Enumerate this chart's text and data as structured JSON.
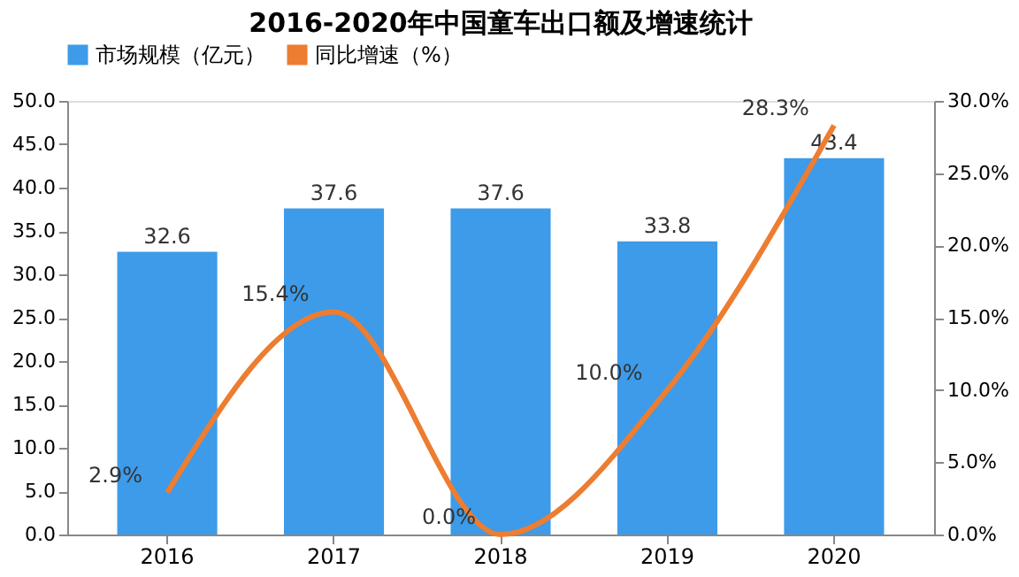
{
  "chart_data": {
    "type": "bar",
    "title": "2016-2020年中国童车出口额及增速统计",
    "categories": [
      "2016",
      "2017",
      "2018",
      "2019",
      "2020"
    ],
    "series": [
      {
        "name": "市场规模（亿元）",
        "axis": "y",
        "color": "#3d9be9",
        "values": [
          32.6,
          37.6,
          37.6,
          33.8,
          43.4
        ]
      },
      {
        "name": "同比增速（%）",
        "type": "line",
        "axis": "y2",
        "color": "#ed7d31",
        "values": [
          2.9,
          15.4,
          0.0,
          10.0,
          28.3
        ],
        "value_labels": [
          "2.9%",
          "15.4%",
          "0.0%",
          "10.0%",
          "28.3%"
        ]
      }
    ],
    "data_labels": true,
    "ylim": [
      0,
      50
    ],
    "yticks": [
      {
        "value": 0,
        "label": "0.0"
      },
      {
        "value": 5,
        "label": "5.0"
      },
      {
        "value": 10,
        "label": "10.0"
      },
      {
        "value": 15,
        "label": "15.0"
      },
      {
        "value": 20,
        "label": "20.0"
      },
      {
        "value": 25,
        "label": "25.0"
      },
      {
        "value": 30,
        "label": "30.0"
      },
      {
        "value": 35,
        "label": "35.0"
      },
      {
        "value": 40,
        "label": "40.0"
      },
      {
        "value": 45,
        "label": "45.0"
      },
      {
        "value": 50,
        "label": "50.0"
      }
    ],
    "y2lim": [
      0,
      30
    ],
    "y2ticks": [
      {
        "value": 0,
        "label": "0.0%"
      },
      {
        "value": 5,
        "label": "5.0%"
      },
      {
        "value": 10,
        "label": "10.0%"
      },
      {
        "value": 15,
        "label": "15.0%"
      },
      {
        "value": 20,
        "label": "20.0%"
      },
      {
        "value": 25,
        "label": "25.0%"
      },
      {
        "value": 30,
        "label": "30.0%"
      }
    ],
    "grid": false,
    "legend": "top"
  }
}
